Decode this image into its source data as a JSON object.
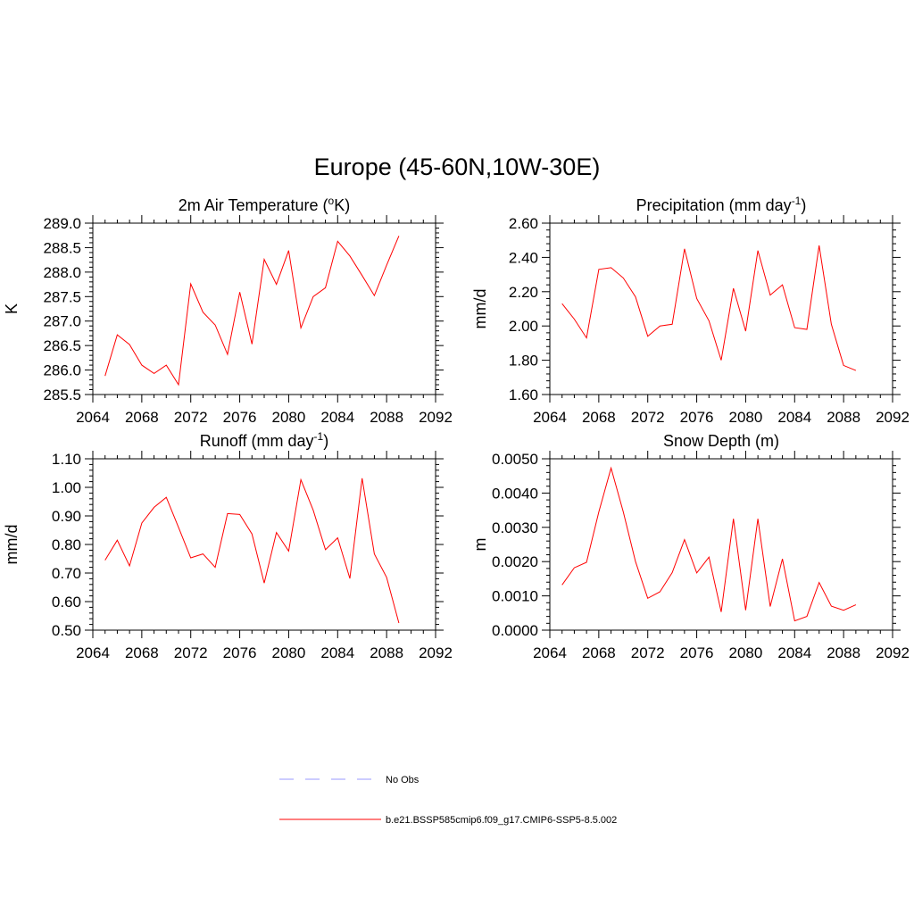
{
  "title": "Europe (45-60N,10W-30E)",
  "colors": {
    "series": "#ff0000",
    "obs": "#9999ff",
    "axes": "#000000"
  },
  "legend": {
    "placement": "bottom-center",
    "items": [
      {
        "label": "No Obs",
        "style": "dashed",
        "color": "#9999ff"
      },
      {
        "label": "b.e21.BSSP585cmip6.f09_g17.CMIP6-SSP5-8.5.002",
        "style": "solid",
        "color": "#ff0000"
      }
    ]
  },
  "chart_data": [
    {
      "type": "line",
      "title": "2m Air Temperature (",
      "title_sup": "o",
      "title_after": "K)",
      "title_end": "",
      "ylabel": "K",
      "xlim": [
        2064,
        2092
      ],
      "ylim": [
        285.5,
        289.0
      ],
      "xticks": [
        "2064",
        "2068",
        "2072",
        "2076",
        "2080",
        "2084",
        "2088",
        "2092"
      ],
      "yticks": [
        "285.5",
        "286.0",
        "286.5",
        "287.0",
        "287.5",
        "288.0",
        "288.5",
        "289.0"
      ],
      "series": [
        {
          "x": [
            2065,
            2066,
            2067,
            2068,
            2069,
            2070,
            2071,
            2072,
            2073,
            2074,
            2075,
            2076,
            2077,
            2078,
            2079,
            2080,
            2081,
            2082,
            2083,
            2084,
            2085,
            2086,
            2087,
            2088,
            2089
          ],
          "values": [
            285.88,
            286.72,
            286.52,
            286.1,
            285.93,
            286.1,
            285.7,
            287.76,
            287.18,
            286.92,
            286.32,
            287.59,
            286.53,
            288.26,
            287.75,
            288.44,
            286.86,
            287.5,
            287.68,
            288.63,
            288.33,
            287.93,
            287.52,
            288.14,
            288.74
          ]
        }
      ]
    },
    {
      "type": "line",
      "title": "Precipitation (mm day",
      "title_sup": "-1",
      "title_after": ")",
      "title_end": "",
      "ylabel": "mm/d",
      "xlim": [
        2064,
        2092
      ],
      "ylim": [
        1.6,
        2.6
      ],
      "xticks": [
        "2064",
        "2068",
        "2072",
        "2076",
        "2080",
        "2084",
        "2088",
        "2092"
      ],
      "yticks": [
        "1.60",
        "1.80",
        "2.00",
        "2.20",
        "2.40",
        "2.60"
      ],
      "series": [
        {
          "x": [
            2065,
            2066,
            2067,
            2068,
            2069,
            2070,
            2071,
            2072,
            2073,
            2074,
            2075,
            2076,
            2077,
            2078,
            2079,
            2080,
            2081,
            2082,
            2083,
            2084,
            2085,
            2086,
            2087,
            2088,
            2089
          ],
          "values": [
            2.13,
            2.04,
            1.93,
            2.33,
            2.34,
            2.28,
            2.17,
            1.94,
            2.0,
            2.01,
            2.45,
            2.16,
            2.03,
            1.8,
            2.22,
            1.97,
            2.44,
            2.18,
            2.24,
            1.99,
            1.98,
            2.47,
            2.01,
            1.77,
            1.74
          ]
        }
      ]
    },
    {
      "type": "line",
      "title": "Runoff (mm day",
      "title_sup": "-1",
      "title_after": ")",
      "title_end": "",
      "ylabel": "mm/d",
      "xlim": [
        2064,
        2092
      ],
      "ylim": [
        0.5,
        1.1
      ],
      "xticks": [
        "2064",
        "2068",
        "2072",
        "2076",
        "2080",
        "2084",
        "2088",
        "2092"
      ],
      "yticks": [
        "0.50",
        "0.60",
        "0.70",
        "0.80",
        "0.90",
        "1.00",
        "1.10"
      ],
      "series": [
        {
          "x": [
            2065,
            2066,
            2067,
            2068,
            2069,
            2070,
            2071,
            2072,
            2073,
            2074,
            2075,
            2076,
            2077,
            2078,
            2079,
            2080,
            2081,
            2082,
            2083,
            2084,
            2085,
            2086,
            2087,
            2088,
            2089
          ],
          "values": [
            0.745,
            0.815,
            0.725,
            0.875,
            0.93,
            0.965,
            0.86,
            0.753,
            0.767,
            0.72,
            0.908,
            0.905,
            0.837,
            0.665,
            0.842,
            0.777,
            1.027,
            0.92,
            0.782,
            0.823,
            0.681,
            1.032,
            0.767,
            0.685,
            0.525
          ]
        }
      ]
    },
    {
      "type": "line",
      "title": "Snow Depth (m)",
      "title_sup": "",
      "title_after": "",
      "title_end": "",
      "ylabel": "m",
      "xlim": [
        2064,
        2092
      ],
      "ylim": [
        0.0,
        0.005
      ],
      "xticks": [
        "2064",
        "2068",
        "2072",
        "2076",
        "2080",
        "2084",
        "2088",
        "2092"
      ],
      "yticks": [
        "0.0000",
        "0.0010",
        "0.0020",
        "0.0030",
        "0.0040",
        "0.0050"
      ],
      "series": [
        {
          "x": [
            2065,
            2066,
            2067,
            2068,
            2069,
            2070,
            2071,
            2072,
            2073,
            2074,
            2075,
            2076,
            2077,
            2078,
            2079,
            2080,
            2081,
            2082,
            2083,
            2084,
            2085,
            2086,
            2087,
            2088,
            2089
          ],
          "values": [
            0.00132,
            0.00182,
            0.00198,
            0.00345,
            0.00473,
            0.00345,
            0.002,
            0.00093,
            0.00112,
            0.00168,
            0.00264,
            0.00167,
            0.00213,
            0.00053,
            0.00325,
            0.00058,
            0.00325,
            0.00069,
            0.00208,
            0.00027,
            0.0004,
            0.00139,
            0.0007,
            0.00058,
            0.00074
          ]
        }
      ]
    }
  ]
}
